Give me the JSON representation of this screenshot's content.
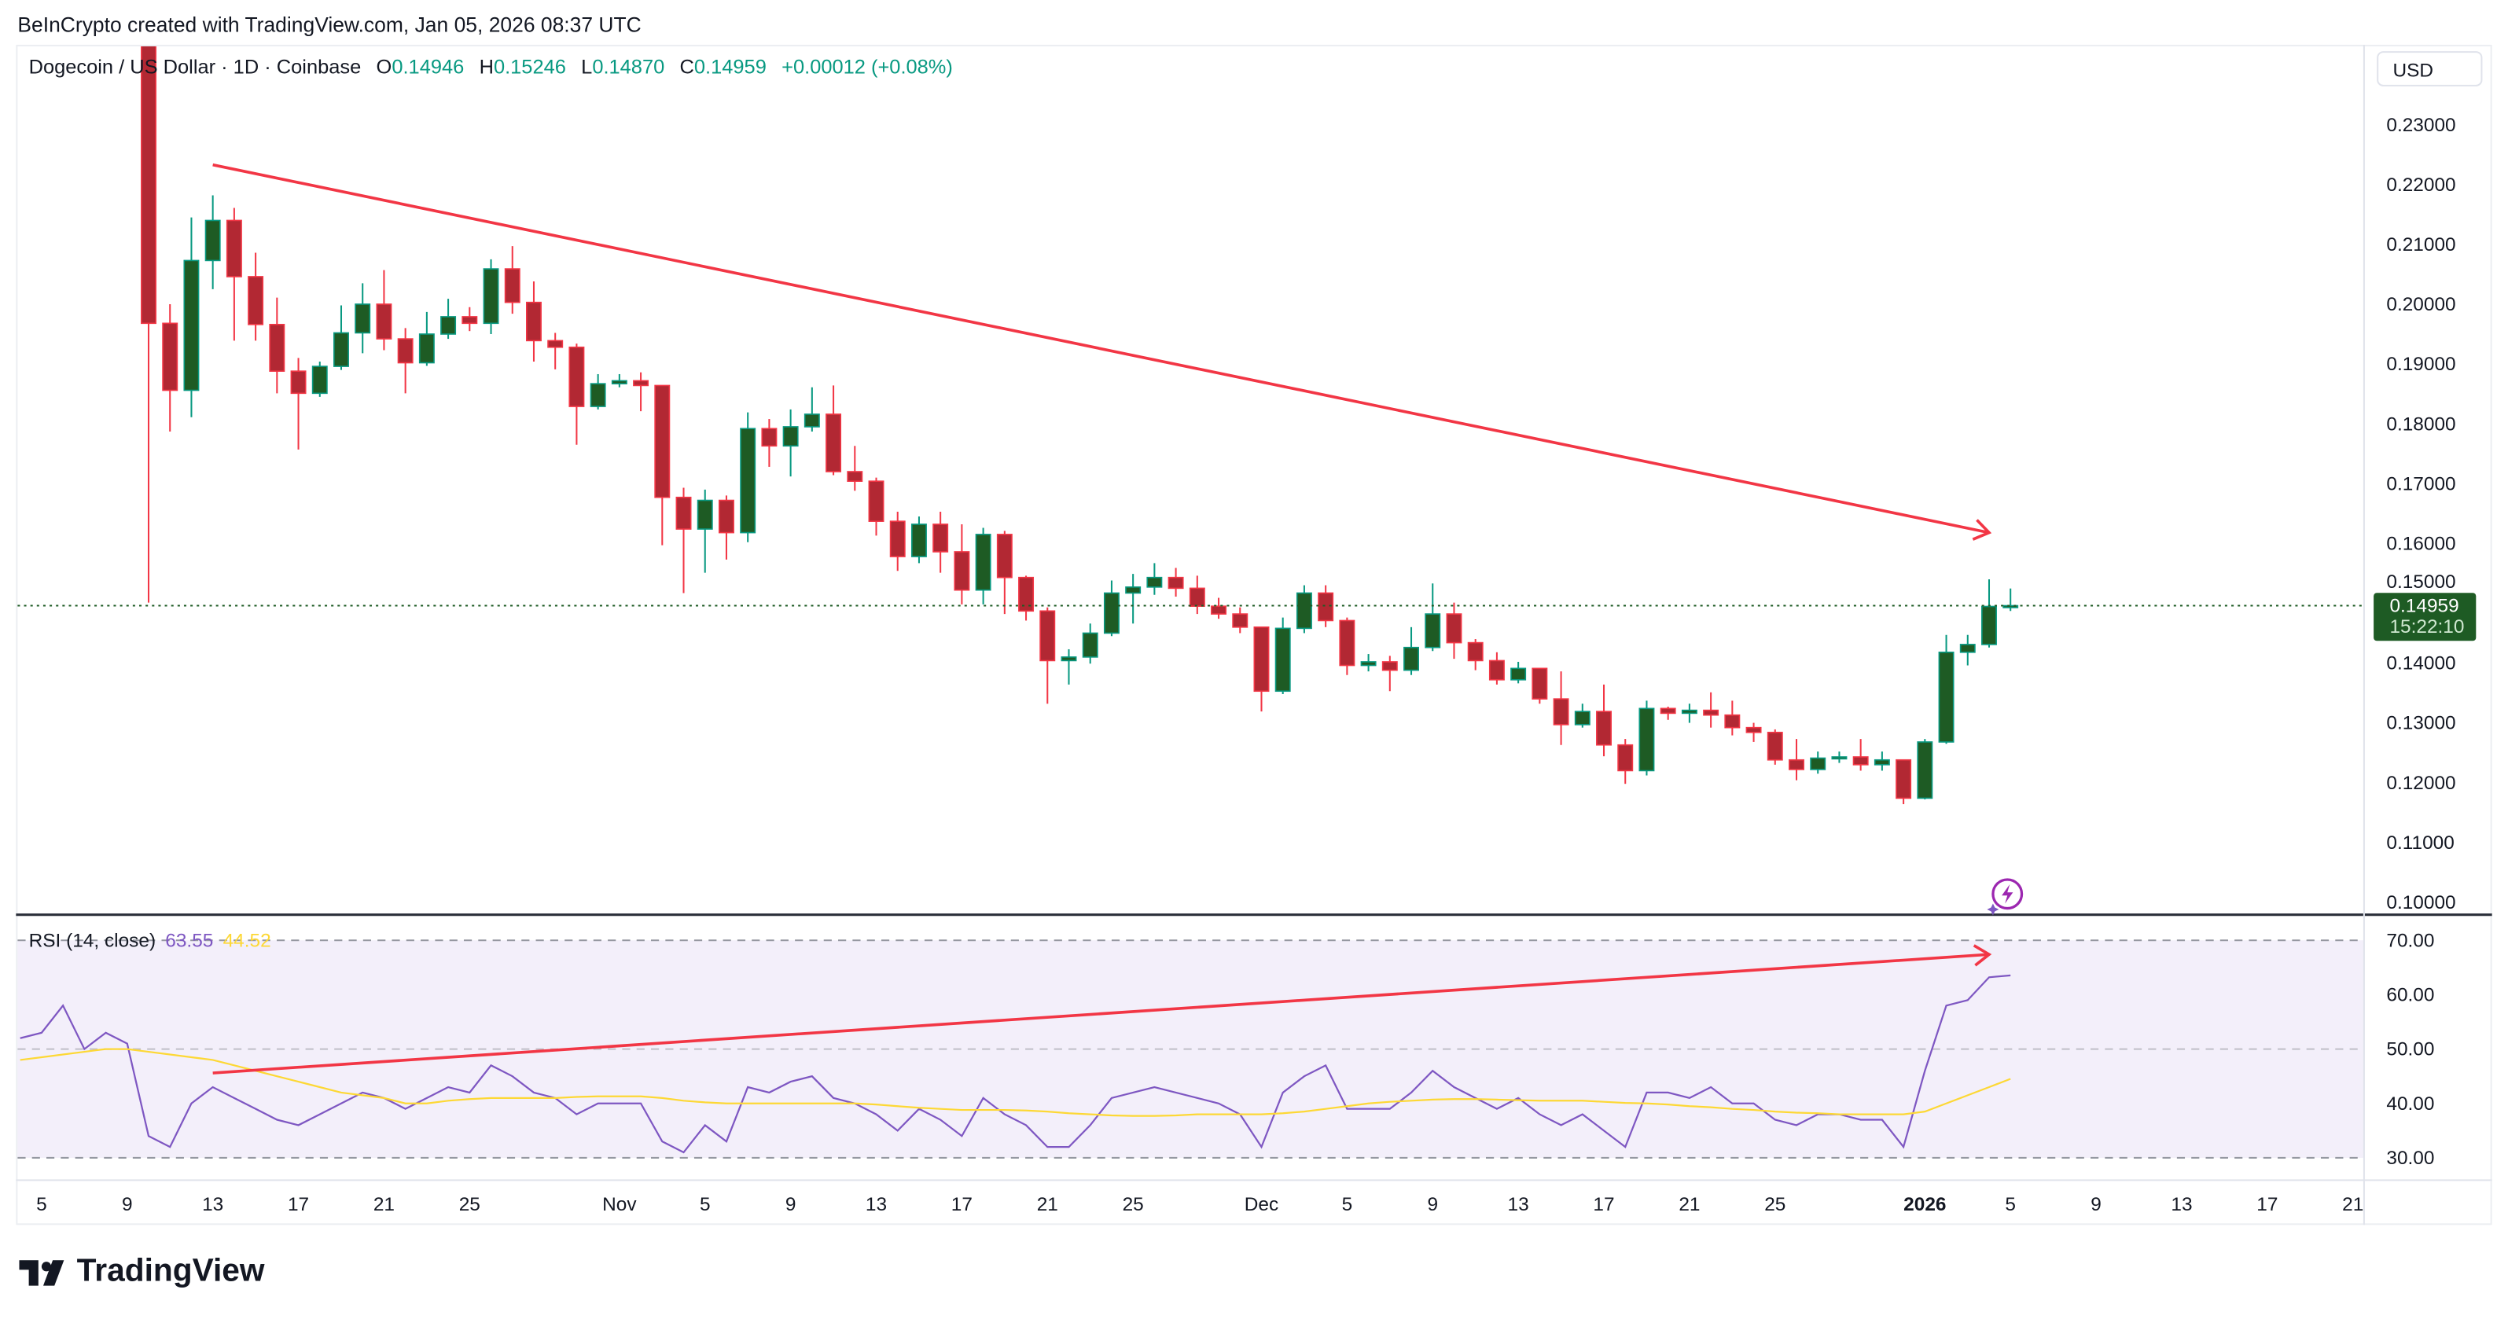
{
  "attribution": "BeInCrypto created with TradingView.com, Jan 05, 2026 08:37 UTC",
  "legend": {
    "symbol": "Dogecoin / US Dollar · 1D · Coinbase",
    "o_label": "O",
    "o": "0.14946",
    "h_label": "H",
    "h": "0.15246",
    "l_label": "L",
    "l": "0.14870",
    "c_label": "C",
    "c": "0.14959",
    "change": "+0.00012 (+0.08%)"
  },
  "currency_button": "USD",
  "price_tag": {
    "price": "0.14959",
    "countdown": "15:22:10",
    "value": 0.14959
  },
  "rsi_legend": {
    "title": "RSI (14, close)",
    "rsi": "63.55",
    "ma": "44.52"
  },
  "logo_text": "TradingView",
  "colors": {
    "up_body": "#1e5b24",
    "up_border": "#089981",
    "down_body": "#b22833",
    "down_border": "#f23645",
    "trendline": "#f23645",
    "rsi": "#7e57c2",
    "rsi_ma": "#fdd835",
    "rsi_band": "#f3effa",
    "price_tag": "#1e5b24"
  },
  "icons": {
    "alert": "lightning-bolt-icon",
    "logo": "tradingview-logo-icon"
  },
  "chart_data": [
    {
      "type": "candlestick",
      "ylim": [
        0.1,
        0.23
      ],
      "yticks": [
        "0.10000",
        "0.11000",
        "0.12000",
        "0.13000",
        "0.14000",
        "0.15000",
        "0.16000",
        "0.17000",
        "0.18000",
        "0.19000",
        "0.20000",
        "0.21000",
        "0.22000",
        "0.23000"
      ],
      "xticks": [
        {
          "date": "2025-10-05",
          "label": "5"
        },
        {
          "date": "2025-10-09",
          "label": "9"
        },
        {
          "date": "2025-10-13",
          "label": "13"
        },
        {
          "date": "2025-10-17",
          "label": "17"
        },
        {
          "date": "2025-10-21",
          "label": "21"
        },
        {
          "date": "2025-10-25",
          "label": "25"
        },
        {
          "date": "2025-11-01",
          "label": "Nov"
        },
        {
          "date": "2025-11-05",
          "label": "5"
        },
        {
          "date": "2025-11-09",
          "label": "9"
        },
        {
          "date": "2025-11-13",
          "label": "13"
        },
        {
          "date": "2025-11-17",
          "label": "17"
        },
        {
          "date": "2025-11-21",
          "label": "21"
        },
        {
          "date": "2025-11-25",
          "label": "25"
        },
        {
          "date": "2025-12-01",
          "label": "Dec"
        },
        {
          "date": "2025-12-05",
          "label": "5"
        },
        {
          "date": "2025-12-09",
          "label": "9"
        },
        {
          "date": "2025-12-13",
          "label": "13"
        },
        {
          "date": "2025-12-17",
          "label": "17"
        },
        {
          "date": "2025-12-21",
          "label": "21"
        },
        {
          "date": "2025-12-25",
          "label": "25"
        },
        {
          "date": "2026-01-01",
          "label": "2026"
        },
        {
          "date": "2026-01-05",
          "label": "5"
        },
        {
          "date": "2026-01-09",
          "label": "9"
        },
        {
          "date": "2026-01-13",
          "label": "13"
        },
        {
          "date": "2026-01-17",
          "label": "17"
        },
        {
          "date": "2026-01-21",
          "label": "21"
        }
      ],
      "candles_columns": [
        "date",
        "open",
        "high",
        "low",
        "close"
      ],
      "candles": [
        [
          "2025-10-10",
          0.2455,
          0.25,
          0.1501,
          0.1968
        ],
        [
          "2025-10-11",
          0.1968,
          0.2,
          0.1787,
          0.1856
        ],
        [
          "2025-10-12",
          0.1856,
          0.2145,
          0.1811,
          0.2073
        ],
        [
          "2025-10-13",
          0.2073,
          0.2182,
          0.2025,
          0.214
        ],
        [
          "2025-10-14",
          0.214,
          0.2161,
          0.1939,
          0.2046
        ],
        [
          "2025-10-15",
          0.2046,
          0.2086,
          0.1939,
          0.1966
        ],
        [
          "2025-10-16",
          0.1966,
          0.2011,
          0.1851,
          0.1888
        ],
        [
          "2025-10-17",
          0.1888,
          0.191,
          0.1757,
          0.1851
        ],
        [
          "2025-10-18",
          0.1851,
          0.1904,
          0.1845,
          0.1896
        ],
        [
          "2025-10-19",
          0.1896,
          0.1998,
          0.189,
          0.1952
        ],
        [
          "2025-10-20",
          0.1952,
          0.2035,
          0.1918,
          0.2
        ],
        [
          "2025-10-21",
          0.2,
          0.2057,
          0.1923,
          0.1942
        ],
        [
          "2025-10-22",
          0.1942,
          0.196,
          0.1851,
          0.1902
        ],
        [
          "2025-10-23",
          0.1902,
          0.1987,
          0.1897,
          0.195
        ],
        [
          "2025-10-24",
          0.195,
          0.2009,
          0.1942,
          0.1979
        ],
        [
          "2025-10-25",
          0.1979,
          0.1995,
          0.1955,
          0.1968
        ],
        [
          "2025-10-26",
          0.1968,
          0.2075,
          0.195,
          0.2059
        ],
        [
          "2025-10-27",
          0.2059,
          0.2097,
          0.1984,
          0.2003
        ],
        [
          "2025-10-28",
          0.2003,
          0.2038,
          0.1904,
          0.1939
        ],
        [
          "2025-10-29",
          0.1939,
          0.1952,
          0.1891,
          0.1928
        ],
        [
          "2025-10-30",
          0.1928,
          0.1934,
          0.1765,
          0.1829
        ],
        [
          "2025-10-31",
          0.1829,
          0.1883,
          0.1824,
          0.1867
        ],
        [
          "2025-11-01",
          0.1867,
          0.1883,
          0.1861,
          0.1872
        ],
        [
          "2025-11-02",
          0.1872,
          0.1886,
          0.1821,
          0.1864
        ],
        [
          "2025-11-03",
          0.1864,
          0.1864,
          0.1597,
          0.1677
        ],
        [
          "2025-11-04",
          0.1677,
          0.1693,
          0.1517,
          0.1624
        ],
        [
          "2025-11-05",
          0.1624,
          0.169,
          0.1551,
          0.1672
        ],
        [
          "2025-11-06",
          0.1672,
          0.168,
          0.1573,
          0.1618
        ],
        [
          "2025-11-07",
          0.1618,
          0.1819,
          0.1602,
          0.1792
        ],
        [
          "2025-11-08",
          0.1792,
          0.1808,
          0.1728,
          0.1763
        ],
        [
          "2025-11-09",
          0.1763,
          0.1824,
          0.1712,
          0.1795
        ],
        [
          "2025-11-10",
          0.1795,
          0.1861,
          0.1787,
          0.1816
        ],
        [
          "2025-11-11",
          0.1816,
          0.1864,
          0.1714,
          0.172
        ],
        [
          "2025-11-12",
          0.172,
          0.1763,
          0.1688,
          0.1704
        ],
        [
          "2025-11-13",
          0.1704,
          0.171,
          0.1613,
          0.1637
        ],
        [
          "2025-11-14",
          0.1637,
          0.1653,
          0.1554,
          0.1578
        ],
        [
          "2025-11-15",
          0.1578,
          0.1645,
          0.1567,
          0.1632
        ],
        [
          "2025-11-16",
          0.1632,
          0.1653,
          0.1551,
          0.1586
        ],
        [
          "2025-11-17",
          0.1586,
          0.1632,
          0.1498,
          0.1522
        ],
        [
          "2025-11-18",
          0.1522,
          0.1626,
          0.1498,
          0.1615
        ],
        [
          "2025-11-19",
          0.1615,
          0.1621,
          0.1482,
          0.1543
        ],
        [
          "2025-11-20",
          0.1543,
          0.1546,
          0.1471,
          0.1487
        ],
        [
          "2025-11-21",
          0.1487,
          0.1493,
          0.1332,
          0.1404
        ],
        [
          "2025-11-22",
          0.1404,
          0.1423,
          0.1364,
          0.141
        ],
        [
          "2025-11-23",
          0.141,
          0.1466,
          0.1399,
          0.145
        ],
        [
          "2025-11-24",
          0.145,
          0.1538,
          0.1445,
          0.1517
        ],
        [
          "2025-11-25",
          0.1517,
          0.1549,
          0.1466,
          0.1527
        ],
        [
          "2025-11-26",
          0.1527,
          0.1567,
          0.1514,
          0.1543
        ],
        [
          "2025-11-27",
          0.1543,
          0.1559,
          0.1511,
          0.1525
        ],
        [
          "2025-11-28",
          0.1525,
          0.1546,
          0.1482,
          0.1495
        ],
        [
          "2025-11-29",
          0.1495,
          0.1509,
          0.1474,
          0.1482
        ],
        [
          "2025-11-30",
          0.1482,
          0.1493,
          0.145,
          0.146
        ],
        [
          "2025-12-01",
          0.146,
          0.146,
          0.1319,
          0.1353
        ],
        [
          "2025-12-02",
          0.1353,
          0.1476,
          0.1348,
          0.1458
        ],
        [
          "2025-12-03",
          0.1458,
          0.153,
          0.145,
          0.1517
        ],
        [
          "2025-12-04",
          0.1517,
          0.153,
          0.146,
          0.1471
        ],
        [
          "2025-12-05",
          0.1471,
          0.1476,
          0.138,
          0.1396
        ],
        [
          "2025-12-06",
          0.1396,
          0.1415,
          0.1386,
          0.1402
        ],
        [
          "2025-12-07",
          0.1402,
          0.1412,
          0.1353,
          0.1388
        ],
        [
          "2025-12-08",
          0.1388,
          0.146,
          0.138,
          0.1426
        ],
        [
          "2025-12-09",
          0.1426,
          0.1533,
          0.142,
          0.1482
        ],
        [
          "2025-12-10",
          0.1482,
          0.1501,
          0.1407,
          0.1434
        ],
        [
          "2025-12-11",
          0.1434,
          0.144,
          0.1388,
          0.1404
        ],
        [
          "2025-12-12",
          0.1404,
          0.1418,
          0.1364,
          0.1372
        ],
        [
          "2025-12-13",
          0.1372,
          0.1402,
          0.1366,
          0.1391
        ],
        [
          "2025-12-14",
          0.1391,
          0.1391,
          0.1332,
          0.134
        ],
        [
          "2025-12-15",
          0.134,
          0.1386,
          0.1263,
          0.1297
        ],
        [
          "2025-12-16",
          0.1297,
          0.1332,
          0.1292,
          0.1319
        ],
        [
          "2025-12-17",
          0.1319,
          0.1364,
          0.1244,
          0.1263
        ],
        [
          "2025-12-18",
          0.1263,
          0.1273,
          0.1198,
          0.122
        ],
        [
          "2025-12-19",
          0.122,
          0.1337,
          0.1212,
          0.1324
        ],
        [
          "2025-12-20",
          0.1324,
          0.1327,
          0.1305,
          0.1316
        ],
        [
          "2025-12-21",
          0.1316,
          0.1332,
          0.13,
          0.1321
        ],
        [
          "2025-12-22",
          0.1321,
          0.1351,
          0.1292,
          0.1313
        ],
        [
          "2025-12-23",
          0.1313,
          0.1337,
          0.1279,
          0.1292
        ],
        [
          "2025-12-24",
          0.1292,
          0.13,
          0.1268,
          0.1284
        ],
        [
          "2025-12-25",
          0.1284,
          0.1289,
          0.123,
          0.1238
        ],
        [
          "2025-12-26",
          0.1238,
          0.1273,
          0.1204,
          0.1222
        ],
        [
          "2025-12-27",
          0.1222,
          0.1252,
          0.1215,
          0.1241
        ],
        [
          "2025-12-28",
          0.1241,
          0.1252,
          0.1233,
          0.1243
        ],
        [
          "2025-12-29",
          0.1243,
          0.1273,
          0.122,
          0.123
        ],
        [
          "2025-12-30",
          0.123,
          0.1252,
          0.122,
          0.1238
        ],
        [
          "2025-12-31",
          0.1238,
          0.1238,
          0.1164,
          0.1174
        ],
        [
          "2026-01-01",
          0.1174,
          0.1273,
          0.1172,
          0.1268
        ],
        [
          "2026-01-02",
          0.1268,
          0.1447,
          0.1265,
          0.1418
        ],
        [
          "2026-01-03",
          0.1418,
          0.1447,
          0.1396,
          0.1431
        ],
        [
          "2026-01-04",
          0.1431,
          0.154,
          0.1426,
          0.14946
        ],
        [
          "2026-01-05",
          0.14946,
          0.15246,
          0.1487,
          0.14959
        ]
      ],
      "trendline": {
        "from": {
          "date": "2025-10-13",
          "price": 0.2233
        },
        "to": {
          "date": "2026-01-04",
          "price": 0.1618
        },
        "arrow": true
      }
    },
    {
      "type": "line",
      "panel": "RSI",
      "ylim": [
        25,
        75
      ],
      "yticks": [
        "30.00",
        "40.00",
        "50.00",
        "60.00",
        "70.00"
      ],
      "bands": {
        "upper": 70,
        "middle": 50,
        "lower": 30
      },
      "first_date": "2025-10-04",
      "series": [
        {
          "name": "RSI",
          "values": [
            52,
            53,
            58,
            50,
            53,
            51,
            34,
            32,
            40,
            43,
            41,
            39,
            37,
            36,
            38,
            40,
            42,
            41,
            39,
            41,
            43,
            42,
            47,
            45,
            42,
            41,
            38,
            40,
            40,
            40,
            33,
            31,
            36,
            33,
            43,
            42,
            44,
            45,
            41,
            40,
            38,
            35,
            39,
            37,
            34,
            41,
            38,
            36,
            32,
            32,
            36,
            41,
            42,
            43,
            42,
            41,
            40,
            38,
            32,
            42,
            45,
            47,
            39,
            39,
            39,
            42,
            46,
            43,
            41,
            39,
            41,
            38,
            36,
            38,
            35,
            32,
            42,
            42,
            41,
            43,
            40,
            40,
            37,
            36,
            38,
            38,
            37,
            37,
            32,
            46,
            58,
            59,
            63.2,
            63.55
          ]
        },
        {
          "name": "MA",
          "values": [
            48,
            48.5,
            49,
            49.5,
            50,
            50,
            49.5,
            49,
            48.5,
            48,
            47,
            46,
            45,
            44,
            43,
            42,
            41.5,
            41,
            40,
            40,
            40.5,
            40.8,
            41,
            41,
            41,
            41,
            41.2,
            41.3,
            41.3,
            41.3,
            41,
            40.5,
            40.2,
            40,
            40,
            40,
            40,
            40,
            40,
            40,
            39.8,
            39.5,
            39.2,
            39,
            38.8,
            38.8,
            38.8,
            38.7,
            38.5,
            38.2,
            38,
            37.8,
            37.7,
            37.7,
            37.8,
            38,
            38,
            38,
            38,
            38.2,
            38.5,
            39,
            39.5,
            40,
            40.3,
            40.5,
            40.7,
            40.8,
            40.8,
            40.7,
            40.6,
            40.5,
            40.5,
            40.5,
            40.3,
            40.1,
            40,
            39.8,
            39.5,
            39.3,
            39,
            38.8,
            38.5,
            38.3,
            38.2,
            38,
            38,
            38,
            38,
            38.5,
            40,
            41.5,
            43,
            44.52
          ]
        }
      ],
      "trendline": {
        "from": {
          "date": "2025-10-13",
          "value": 45.6
        },
        "to": {
          "date": "2026-01-04",
          "value": 67.4
        },
        "arrow": true
      }
    }
  ]
}
